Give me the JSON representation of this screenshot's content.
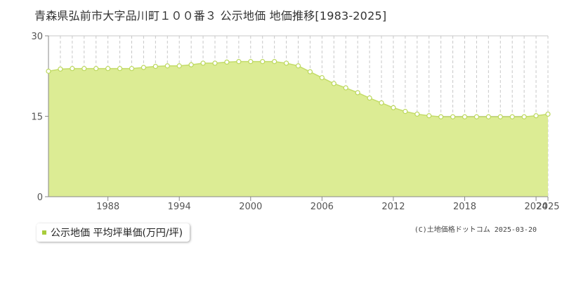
{
  "colors": {
    "area_fill": "#dcec94",
    "line": "#c4dc6a",
    "marker_stroke": "#bcd85c",
    "legend_swatch": "#a8cc3c",
    "grid": "#c8c8c8",
    "axis": "#888888"
  },
  "legend": {
    "label": "公示地価 平均坪単価(万円/坪)"
  },
  "copyright": "(C)土地価格ドットコム 2025-03-20",
  "chart_data": {
    "type": "area",
    "title": "青森県弘前市大字品川町１００番３ 公示地価 地価推移[1983-2025]",
    "xlabel": "",
    "ylabel": "",
    "xlim": [
      1983,
      2025
    ],
    "ylim": [
      0,
      30
    ],
    "y_ticks": [
      0,
      15,
      30
    ],
    "x_tick_labels": [
      "1988",
      "1994",
      "2000",
      "2006",
      "2012",
      "2018",
      "2024",
      "2025"
    ],
    "x_tick_values": [
      1988,
      1994,
      2000,
      2006,
      2012,
      2018,
      2024,
      2025
    ],
    "grid": true,
    "legend_position": "bottom-left",
    "series": [
      {
        "name": "公示地価 平均坪単価(万円/坪)",
        "x": [
          1983,
          1984,
          1985,
          1986,
          1987,
          1988,
          1989,
          1990,
          1991,
          1992,
          1993,
          1994,
          1995,
          1996,
          1997,
          1998,
          1999,
          2000,
          2001,
          2002,
          2003,
          2004,
          2005,
          2006,
          2007,
          2008,
          2009,
          2010,
          2011,
          2012,
          2013,
          2014,
          2015,
          2016,
          2017,
          2018,
          2019,
          2020,
          2021,
          2022,
          2023,
          2024,
          2025
        ],
        "values": [
          23.4,
          23.8,
          23.9,
          23.9,
          23.9,
          23.9,
          23.9,
          23.9,
          24.1,
          24.3,
          24.4,
          24.4,
          24.6,
          24.9,
          24.9,
          25.1,
          25.2,
          25.2,
          25.2,
          25.2,
          24.9,
          24.4,
          23.3,
          22.2,
          21.1,
          20.3,
          19.4,
          18.4,
          17.5,
          16.6,
          15.9,
          15.4,
          15.1,
          14.9,
          14.9,
          14.9,
          14.9,
          14.9,
          14.9,
          14.9,
          14.9,
          15.1,
          15.4
        ]
      }
    ]
  }
}
